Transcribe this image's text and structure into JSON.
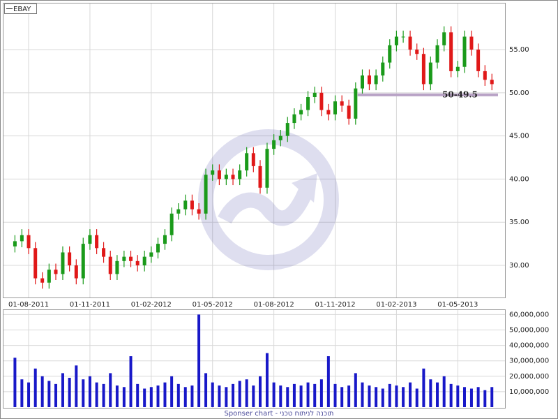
{
  "chart_data": {
    "type": "candlestick",
    "legend": "EBAY",
    "footer": "Sponser chart - תוכנה לניתוח טכני",
    "up_color": "#1a9a1a",
    "down_color": "#e01818",
    "x": [
      -0.67,
      -0.33,
      0,
      0.33,
      0.67,
      1,
      1.33,
      1.67,
      2,
      2.33,
      2.67,
      3,
      3.33,
      3.67,
      4,
      4.33,
      4.67,
      5,
      5.33,
      5.67,
      6,
      6.33,
      6.67,
      7,
      7.33,
      7.67,
      8,
      8.33,
      8.67,
      9,
      9.33,
      9.67,
      10,
      10.33,
      10.67,
      11,
      11.33,
      11.67,
      12,
      12.33,
      12.67,
      13,
      13.33,
      13.67,
      14,
      14.33,
      14.67,
      15,
      15.33,
      15.67,
      16,
      16.33,
      16.67,
      17,
      17.33,
      17.67,
      18,
      18.33,
      18.67,
      19,
      19.33,
      19.67,
      20,
      20.33,
      20.67,
      21,
      21.33,
      21.67,
      22,
      22.33,
      22.67
    ],
    "open": [
      32.2,
      32.8,
      33.5,
      32.0,
      28.5,
      28.0,
      29.5,
      29.0,
      31.5,
      30.0,
      28.5,
      32.5,
      33.5,
      32.0,
      31.0,
      29.0,
      30.5,
      31.0,
      30.5,
      30.0,
      31.0,
      31.5,
      32.5,
      33.5,
      36.0,
      36.5,
      37.5,
      36.5,
      36.0,
      40.5,
      41.0,
      40.0,
      40.5,
      40.0,
      41.0,
      43.0,
      41.5,
      39.0,
      43.5,
      44.5,
      45.0,
      46.5,
      47.5,
      48.0,
      49.5,
      50.0,
      48.0,
      47.5,
      49.0,
      48.5,
      47.0,
      50.5,
      52.0,
      51.0,
      52.0,
      53.5,
      55.5,
      56.5,
      56.5,
      55.0,
      54.5,
      51.0,
      53.5,
      55.5,
      57.0,
      52.5,
      53.0,
      56.5,
      55.0,
      52.5,
      51.5
    ],
    "high": [
      33.5,
      34.2,
      34.2,
      32.7,
      29.2,
      30.2,
      30.2,
      32.2,
      32.2,
      30.7,
      33.2,
      34.2,
      34.2,
      32.7,
      31.7,
      31.2,
      31.7,
      31.7,
      31.2,
      31.7,
      32.2,
      33.2,
      34.2,
      36.7,
      37.2,
      38.2,
      38.2,
      37.2,
      41.2,
      41.7,
      41.7,
      41.2,
      41.2,
      41.7,
      43.7,
      43.7,
      42.2,
      44.2,
      45.2,
      45.7,
      47.2,
      48.2,
      48.7,
      50.2,
      50.7,
      50.7,
      48.7,
      49.7,
      49.7,
      49.2,
      51.2,
      52.7,
      52.7,
      52.7,
      54.2,
      56.2,
      57.2,
      57.2,
      57.2,
      55.7,
      55.2,
      54.2,
      56.2,
      57.7,
      57.7,
      53.7,
      57.2,
      57.2,
      55.7,
      53.2,
      52.2
    ],
    "low": [
      31.5,
      32.1,
      31.3,
      27.8,
      27.3,
      27.3,
      28.3,
      28.3,
      29.3,
      27.8,
      27.8,
      31.8,
      31.3,
      30.3,
      28.3,
      28.3,
      29.8,
      29.8,
      29.3,
      29.3,
      30.3,
      30.8,
      31.8,
      32.8,
      35.3,
      35.8,
      35.8,
      35.3,
      35.3,
      39.8,
      39.3,
      39.3,
      39.3,
      39.3,
      40.3,
      40.8,
      38.3,
      38.3,
      42.8,
      43.8,
      44.3,
      45.8,
      46.8,
      47.3,
      48.8,
      47.3,
      46.8,
      46.8,
      47.8,
      46.3,
      46.3,
      49.8,
      50.3,
      50.3,
      51.3,
      52.8,
      54.8,
      55.8,
      54.3,
      53.8,
      50.3,
      50.3,
      52.8,
      54.8,
      51.8,
      51.8,
      52.3,
      54.3,
      51.8,
      50.8,
      50.3
    ],
    "close": [
      32.8,
      33.5,
      32.0,
      28.5,
      28.0,
      29.5,
      29.0,
      31.5,
      30.0,
      28.5,
      32.5,
      33.5,
      32.0,
      31.0,
      29.0,
      30.5,
      31.0,
      30.5,
      30.0,
      31.0,
      31.5,
      32.5,
      33.5,
      36.0,
      36.5,
      37.5,
      36.5,
      36.0,
      40.5,
      41.0,
      40.0,
      40.5,
      40.0,
      41.0,
      43.0,
      41.5,
      39.0,
      43.5,
      44.5,
      45.0,
      46.5,
      47.5,
      48.0,
      49.5,
      50.0,
      48.0,
      47.5,
      49.0,
      48.5,
      47.0,
      50.5,
      52.0,
      51.0,
      52.0,
      53.5,
      55.5,
      56.5,
      56.5,
      55.0,
      54.5,
      51.0,
      53.5,
      55.5,
      57.0,
      52.5,
      53.0,
      56.5,
      55.0,
      52.5,
      51.5,
      51.0
    ],
    "xlim": [
      -1.23,
      23.31
    ],
    "xticks": [
      {
        "value": 0,
        "label": "01-08-2011"
      },
      {
        "value": 3,
        "label": "01-11-2011"
      },
      {
        "value": 6,
        "label": "01-02-2012"
      },
      {
        "value": 9,
        "label": "01-05-2012"
      },
      {
        "value": 12,
        "label": "01-08-2012"
      },
      {
        "value": 15,
        "label": "01-11-2012"
      },
      {
        "value": 18,
        "label": "01-02-2013"
      },
      {
        "value": 21,
        "label": "01-05-2013"
      }
    ],
    "ylim": [
      26.44,
      60.1
    ],
    "yticks": [
      {
        "value": 30,
        "label": "30.00"
      },
      {
        "value": 35,
        "label": "35.00"
      },
      {
        "value": 40,
        "label": "40.00"
      },
      {
        "value": 45,
        "label": "45.00"
      },
      {
        "value": 50,
        "label": "50.00"
      },
      {
        "value": 55,
        "label": "55.00"
      }
    ],
    "support": {
      "label": "50-49.5",
      "value": 49.75,
      "x_start": 16.1,
      "color": "#b9a3c6"
    },
    "volume": {
      "color": "#1818c8",
      "values": [
        32000000,
        18000000,
        16000000,
        25000000,
        20000000,
        17000000,
        15000000,
        22000000,
        19000000,
        27000000,
        18000000,
        20000000,
        16000000,
        15000000,
        22000000,
        14000000,
        13000000,
        33000000,
        15000000,
        12000000,
        13000000,
        14000000,
        16000000,
        20000000,
        15000000,
        13000000,
        14000000,
        60000000,
        22000000,
        16000000,
        14000000,
        13000000,
        15000000,
        17000000,
        18000000,
        14000000,
        20000000,
        35000000,
        16000000,
        14000000,
        13000000,
        15000000,
        14000000,
        16000000,
        15000000,
        18000000,
        33000000,
        15000000,
        13000000,
        14000000,
        22000000,
        16000000,
        14000000,
        13000000,
        12000000,
        15000000,
        14000000,
        13000000,
        16000000,
        12000000,
        25000000,
        18000000,
        16000000,
        20000000,
        15000000,
        14000000,
        13000000,
        12000000,
        13000000,
        11000000,
        13000000
      ],
      "ylim": [
        0,
        62000000
      ],
      "yticks": [
        {
          "value": 10000000,
          "label": "10,000,000"
        },
        {
          "value": 20000000,
          "label": "20,000,000"
        },
        {
          "value": 30000000,
          "label": "30,000,000"
        },
        {
          "value": 40000000,
          "label": "40,000,000"
        },
        {
          "value": 50000000,
          "label": "50,000,000"
        },
        {
          "value": 60000000,
          "label": "60,000,000"
        }
      ]
    },
    "grid": true
  }
}
